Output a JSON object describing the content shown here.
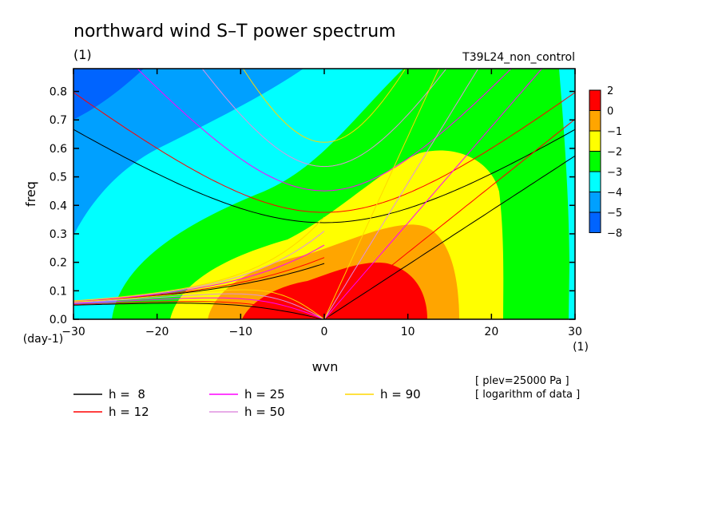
{
  "chart_data": {
    "type": "heatmap",
    "title": "northward wind S–T power spectrum",
    "subtitle_left": "(1)",
    "subtitle_right": "T39L24_non_control",
    "xlabel": "wvn",
    "ylabel": "freq",
    "x_unit": "(1)",
    "y_unit": "(day-1)",
    "xlim": [
      -30,
      30
    ],
    "ylim": [
      0,
      0.88
    ],
    "x_ticks": [
      "−30",
      "−20",
      "−10",
      "0",
      "10",
      "20",
      "30"
    ],
    "y_ticks": [
      "0.0",
      "0.1",
      "0.2",
      "0.3",
      "0.4",
      "0.5",
      "0.6",
      "0.7",
      "0.8"
    ],
    "colorbar": {
      "levels": [
        "2",
        "0",
        "−1",
        "−2",
        "−3",
        "−4",
        "−5",
        "−8"
      ],
      "colors": [
        "#ff0000",
        "#ffa500",
        "#ffff00",
        "#00ff00",
        "#00ffff",
        "#00a0ff",
        "#0064ff"
      ]
    },
    "dispersion_curves": [
      {
        "label": "h =  8",
        "color": "#000000"
      },
      {
        "label": "h = 12",
        "color": "#ff0000"
      },
      {
        "label": "h = 25",
        "color": "#ff00ff"
      },
      {
        "label": "h = 50",
        "color": "#e090e0"
      },
      {
        "label": "h = 90",
        "color": "#ffd700"
      }
    ],
    "notes": [
      "[ plev=25000 Pa ]",
      "[ logarithm of data ]"
    ]
  }
}
